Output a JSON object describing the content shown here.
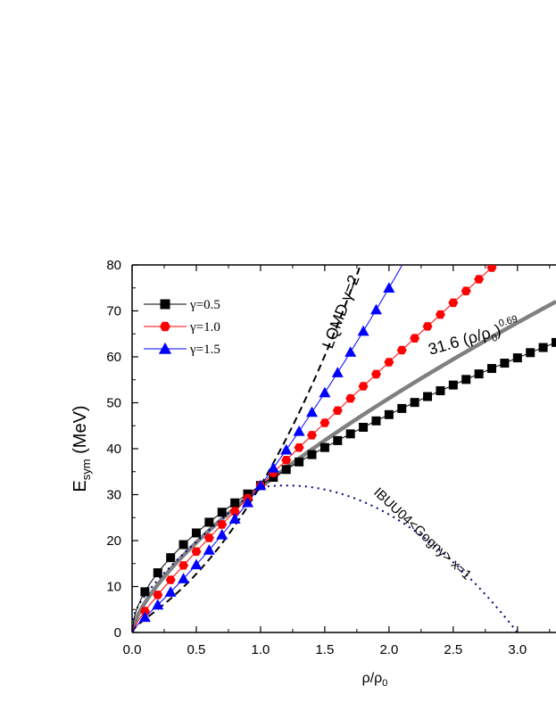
{
  "chart_data": {
    "type": "line",
    "xlabel": "ρ/ρ0",
    "ylabel": "Esym (MeV)",
    "xlim": [
      0,
      3.3
    ],
    "ylim": [
      0,
      80
    ],
    "xticks": [
      "0.0",
      "0.5",
      "1.0",
      "1.5",
      "2.0",
      "2.5",
      "3.0"
    ],
    "yticks": [
      "0",
      "10",
      "20",
      "30",
      "40",
      "50",
      "60",
      "70",
      "80"
    ],
    "legend_placement": "top-left",
    "series": [
      {
        "name": "γ=0.5",
        "marker": "square",
        "color": "#000000",
        "gamma": 0.5,
        "x_start": 0.1,
        "x_end": 3.3,
        "x_step": 0.1
      },
      {
        "name": "γ=1.0",
        "marker": "hexagon",
        "color": "#ff0000",
        "gamma": 1.0,
        "x_start": 0.1,
        "x_end": 2.8,
        "x_step": 0.1
      },
      {
        "name": "γ=1.5",
        "marker": "triangle",
        "color": "#0000ff",
        "gamma": 1.5,
        "x_start": 0.1,
        "x_end": 2.0,
        "x_step": 0.1
      }
    ],
    "reference_curves": {
      "fit": {
        "coefficient": 31.6,
        "exponent": 0.69,
        "color": "#808080"
      },
      "lqmd": {
        "gamma": 2,
        "color": "#000000",
        "style": "dashed"
      },
      "ibuu": {
        "x": 1,
        "color": "#000080",
        "style": "dotted",
        "x_end": 3.0
      }
    },
    "annotations": {
      "lqmd_label": "LQMD γ=2",
      "fit_label_prefix": "31.6 (ρ/ρ",
      "fit_label_sub": "0",
      "fit_label_suffix": ")",
      "fit_label_exp": "0.69",
      "ibuu_label": "IBUU04<Gogny> x=1"
    }
  }
}
